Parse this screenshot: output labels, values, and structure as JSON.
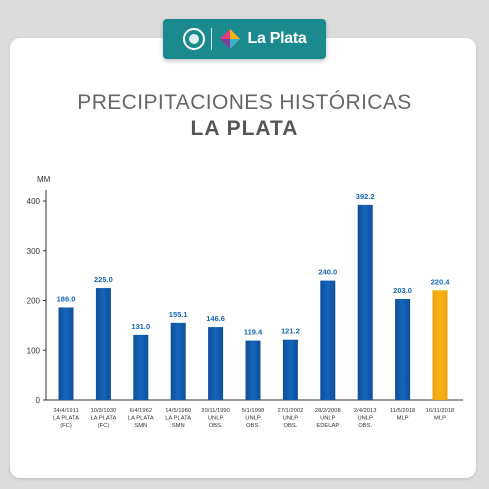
{
  "brand": {
    "name": "La Plata"
  },
  "colors": {
    "header": "#1a8a8f",
    "bar": "#1565b8",
    "highlight": "#f6b514"
  },
  "chart_data": {
    "type": "bar",
    "title": "PRECIPITACIONES HISTÓRICAS",
    "subtitle": "LA PLATA",
    "ylabel": "MM",
    "ylim": [
      0,
      400
    ],
    "yticks": [
      0,
      100,
      200,
      300,
      400
    ],
    "grid": false,
    "categories": [
      [
        "24/4/1911",
        "LA PLATA",
        "(FC)"
      ],
      [
        "10/3/1930",
        "LA PLATA",
        "(FC)"
      ],
      [
        "6/4/1962",
        "LA PLATA",
        "SMN"
      ],
      [
        "14/5/1980",
        "LA PLATA",
        "SMN"
      ],
      [
        "20/11/1990",
        "UNLP",
        "OBS."
      ],
      [
        "5/1/1998",
        "UNLP",
        "OBS."
      ],
      [
        "27/1/2002",
        "UNLP",
        "OBS."
      ],
      [
        "28/2/2008",
        "UNLP",
        "EDELAP"
      ],
      [
        "2/4/2013",
        "UNLP",
        "OBS."
      ],
      [
        "11/5/2018",
        "MLP"
      ],
      [
        "16/11/2018",
        "MLP"
      ]
    ],
    "values": [
      186.0,
      225.0,
      131.0,
      155.1,
      146.6,
      119.4,
      121.2,
      240.0,
      392.2,
      203.0,
      220.4
    ],
    "value_labels": [
      "186.0",
      "225.0",
      "131.0",
      "155.1",
      "146.6",
      "119.4",
      "121.2",
      "240.0",
      "392.2",
      "203.0",
      "220.4"
    ],
    "highlight_index": 10
  }
}
